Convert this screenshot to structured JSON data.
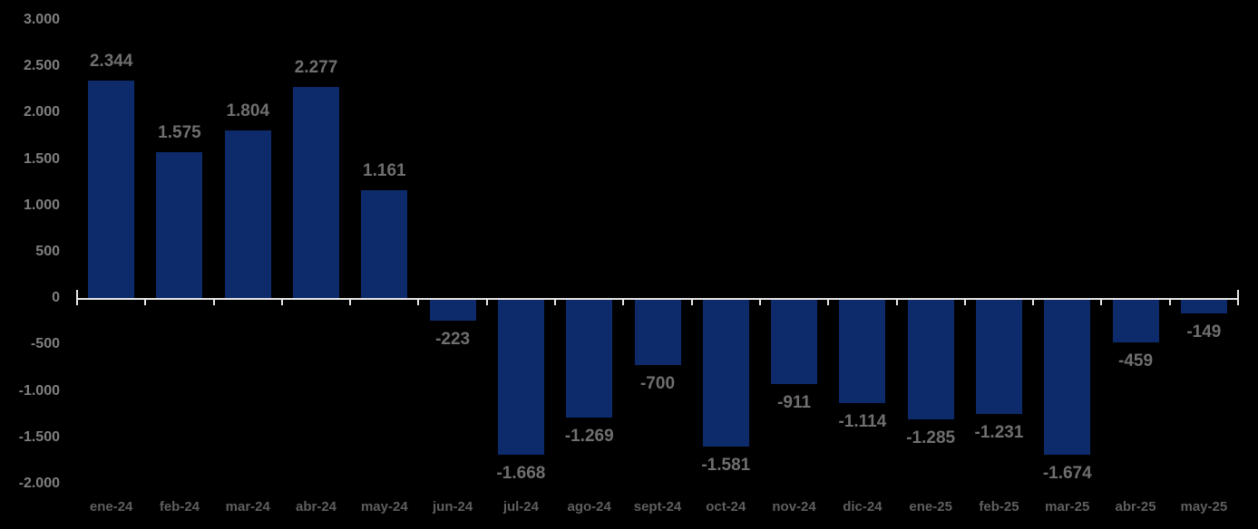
{
  "chart_data": {
    "type": "bar",
    "title": "",
    "xlabel": "",
    "ylabel": "",
    "categories": [
      "ene-24",
      "feb-24",
      "mar-24",
      "abr-24",
      "may-24",
      "jun-24",
      "jul-24",
      "ago-24",
      "sept-24",
      "oct-24",
      "nov-24",
      "dic-24",
      "ene-25",
      "feb-25",
      "mar-25",
      "abr-25",
      "may-25"
    ],
    "values": [
      2344,
      1575,
      1804,
      2277,
      1161,
      -223,
      -1668,
      -1269,
      -700,
      -1581,
      -911,
      -1114,
      -1285,
      -1231,
      -1674,
      -459,
      -149
    ],
    "value_labels": [
      "2.344",
      "1.575",
      "1.804",
      "2.277",
      "1.161",
      "-223",
      "-1.668",
      "-1.269",
      "-700",
      "-1.581",
      "-911",
      "-1.114",
      "-1.285",
      "-1.231",
      "-1.674",
      "-459",
      "-149"
    ],
    "ylim": [
      -2000,
      3000
    ],
    "ytick_step": 500,
    "ytick_labels": [
      "3.000",
      "2.500",
      "2.000",
      "1.500",
      "1.000",
      "500",
      "0",
      "-500",
      "-1.000",
      "-1.500",
      "-2.000"
    ],
    "grid": false,
    "legend": "none",
    "colors": {
      "background": "#000000",
      "bar": "#0d2b6b",
      "axis_line": "#e8e8e8",
      "ytick_label": "#7f7f7f",
      "value_label": "#6f6f6f",
      "category_label": "#5f5f5f"
    }
  }
}
